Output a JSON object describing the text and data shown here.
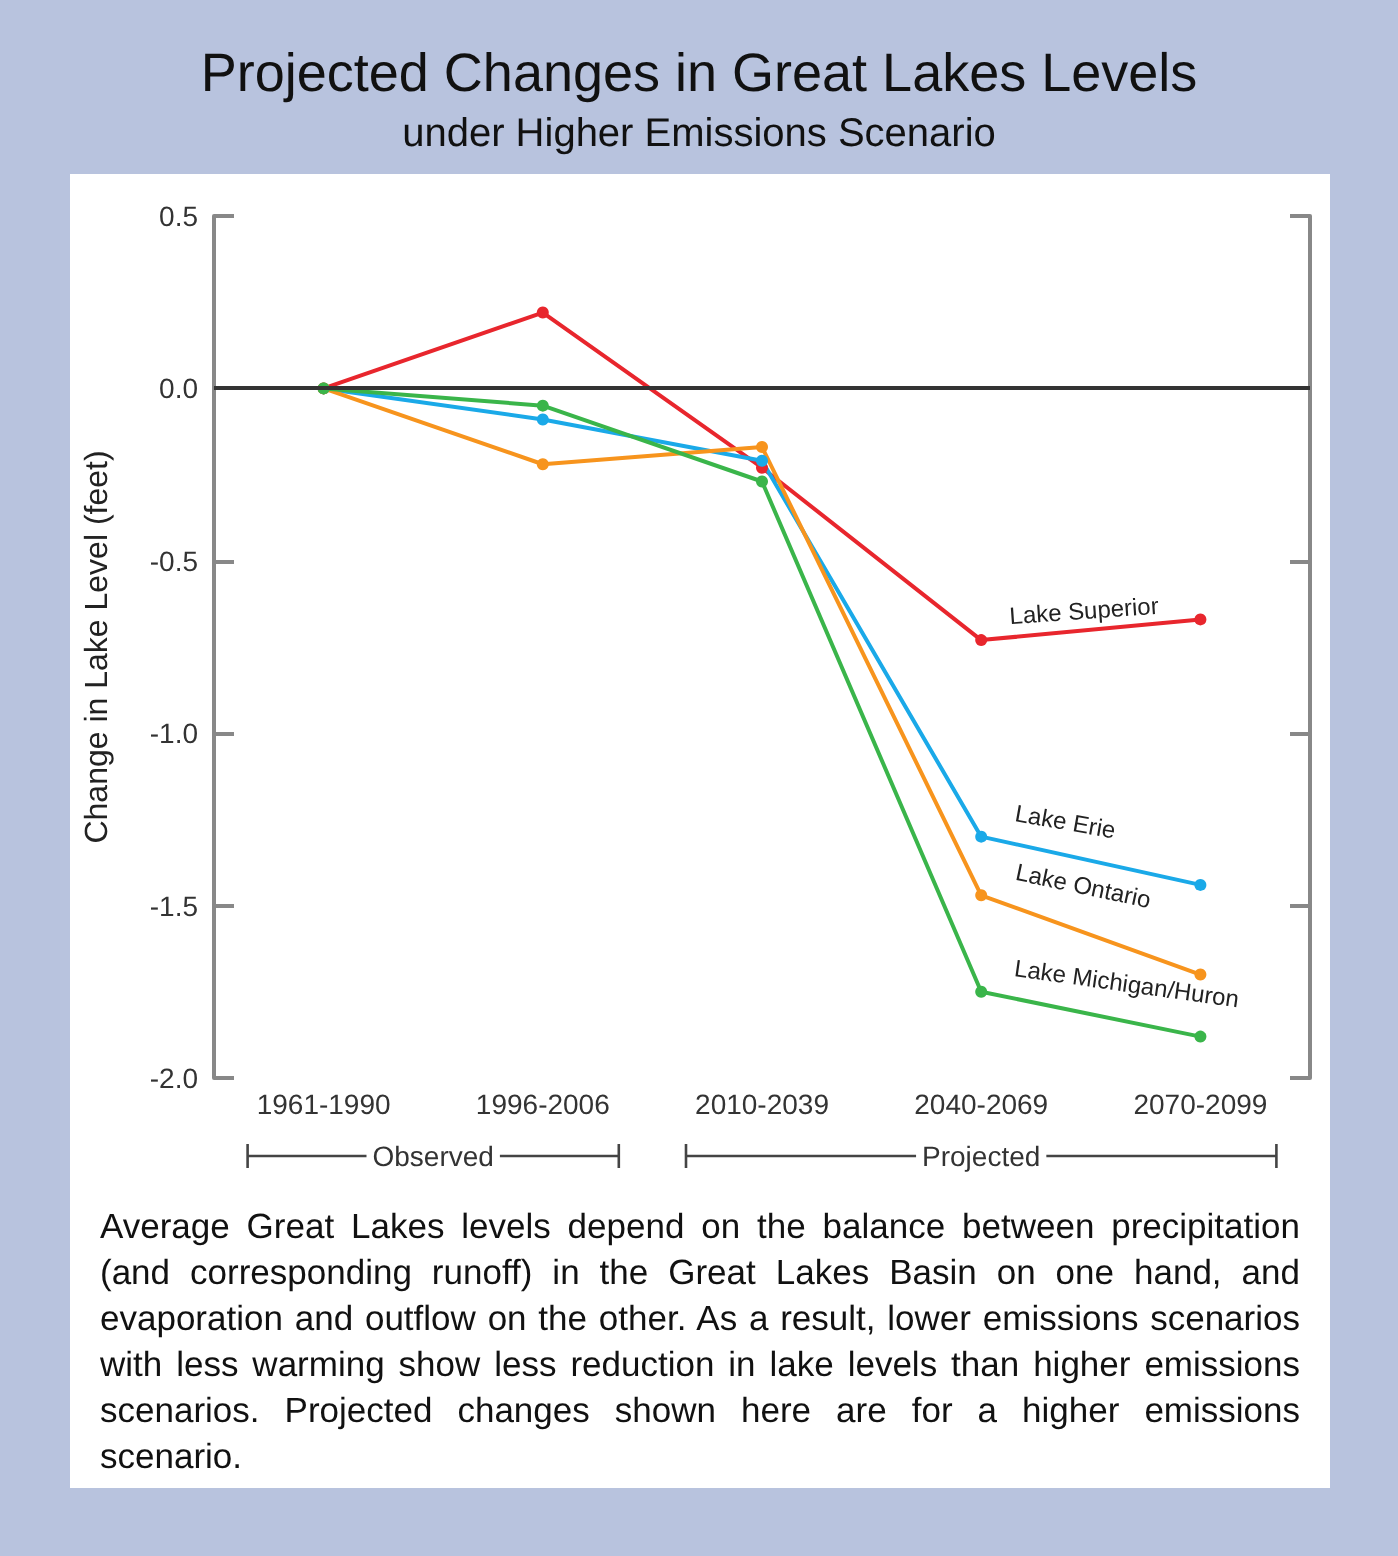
{
  "chart_data": {
    "type": "line",
    "title": "Projected Changes in Great Lakes Levels",
    "subtitle": "under Higher Emissions Scenario",
    "ylabel": "Change in Lake Level (feet)",
    "categories": [
      "1961-1990",
      "1996-2006",
      "2010-2039",
      "2040-2069",
      "2070-2099"
    ],
    "series": [
      {
        "name": "Lake Superior",
        "color": "#e8262d",
        "values": [
          0,
          0.22,
          -0.23,
          -0.73,
          -0.67
        ]
      },
      {
        "name": "Lake Erie",
        "color": "#1aa9e8",
        "values": [
          0,
          -0.09,
          -0.21,
          -1.3,
          -1.44
        ]
      },
      {
        "name": "Lake Ontario",
        "color": "#f7941d",
        "values": [
          0,
          -0.22,
          -0.17,
          -1.47,
          -1.7
        ]
      },
      {
        "name": "Lake Michigan/Huron",
        "color": "#3ab54a",
        "values": [
          0,
          -0.05,
          -0.27,
          -1.75,
          -1.88
        ]
      }
    ],
    "ylim": [
      -2.0,
      0.5
    ],
    "yticks": [
      {
        "value": -2.0,
        "label": "-2.0"
      },
      -1.5,
      {
        "value": -1.0,
        "label": "-1.0"
      },
      -0.5,
      {
        "value": 0,
        "label": "0.0"
      },
      0.5
    ],
    "ref_lines": [
      {
        "axis": "y",
        "value": 0,
        "color": "#333333"
      }
    ],
    "marker": "circle",
    "line_style": "solid",
    "legend": false,
    "grid": false,
    "annotations": [
      "Observed",
      "Projected",
      "Average Great Lakes levels depend on the balance between precipitation (and corresponding runoff) in the Great Lakes Basin on one hand, and evaporation and outflow on the other. As a result, lower emissions scenarios with less warming show less reduction in lake levels than higher emissions scenarios. Projected changes shown here are for a higher emissions scenario."
    ]
  }
}
